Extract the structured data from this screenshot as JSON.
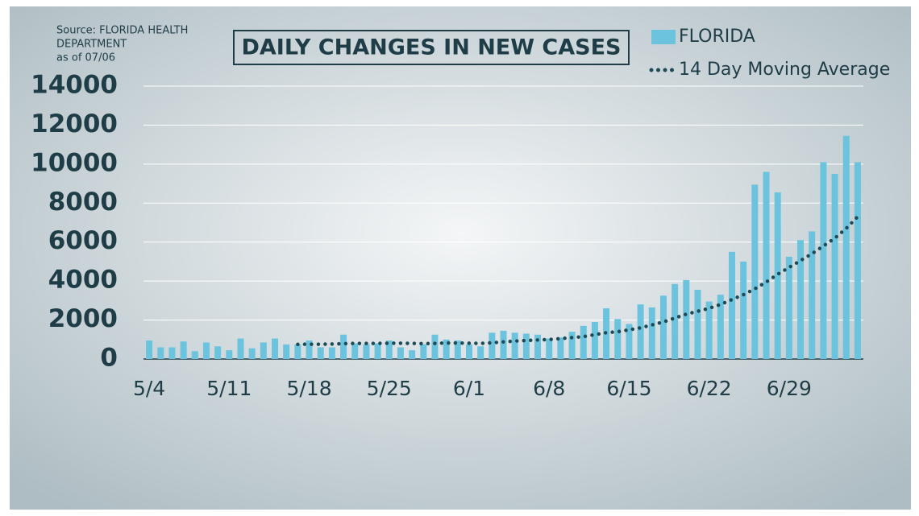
{
  "chart_data": {
    "type": "bar",
    "title": "DAILY CHANGES IN NEW CASES",
    "source": [
      "Source: FLORIDA HEALTH",
      "DEPARTMENT",
      "as of 07/06"
    ],
    "categories": [
      "5/4",
      null,
      null,
      null,
      null,
      null,
      null,
      "5/11",
      null,
      null,
      null,
      null,
      null,
      null,
      "5/18",
      null,
      null,
      null,
      null,
      null,
      null,
      "5/25",
      null,
      null,
      null,
      null,
      null,
      null,
      "6/1",
      null,
      null,
      null,
      null,
      null,
      null,
      "6/8",
      null,
      null,
      null,
      null,
      null,
      null,
      "6/15",
      null,
      null,
      null,
      null,
      null,
      null,
      "6/22",
      null,
      null,
      null,
      null,
      null,
      null,
      "6/29",
      null,
      null,
      null,
      null,
      null,
      null
    ],
    "series": [
      {
        "name": "FLORIDA",
        "color": "#6cc3de",
        "style": "bar",
        "values": [
          950,
          600,
          600,
          900,
          400,
          850,
          650,
          450,
          1050,
          550,
          850,
          1050,
          750,
          750,
          950,
          600,
          600,
          1250,
          800,
          750,
          800,
          950,
          600,
          450,
          750,
          1250,
          1000,
          950,
          750,
          650,
          1350,
          1450,
          1350,
          1300,
          1250,
          1050,
          1100,
          1400,
          1700,
          1900,
          2600,
          2050,
          1800,
          2800,
          2650,
          3250,
          3850,
          4050,
          3550,
          2950,
          3300,
          5500,
          5000,
          8950,
          9600,
          8550,
          5250,
          6100,
          6550,
          10100,
          9500,
          11450,
          10100
        ]
      },
      {
        "name": "14 Day Moving Average",
        "color": "#1d4a55",
        "style": "dotted-line",
        "values": [
          null,
          null,
          null,
          null,
          null,
          null,
          null,
          null,
          null,
          null,
          null,
          null,
          null,
          750,
          760,
          760,
          770,
          790,
          800,
          800,
          800,
          810,
          810,
          800,
          790,
          800,
          820,
          820,
          810,
          800,
          830,
          880,
          920,
          950,
          980,
          1000,
          1050,
          1100,
          1150,
          1250,
          1350,
          1400,
          1500,
          1600,
          1750,
          1900,
          2100,
          2300,
          2450,
          2600,
          2800,
          3050,
          3300,
          3600,
          3950,
          4350,
          4700,
          5050,
          5400,
          5800,
          6200,
          6700,
          7300
        ]
      }
    ],
    "ylim": [
      0,
      14000
    ],
    "yticks": [
      0,
      2000,
      4000,
      6000,
      8000,
      10000,
      12000,
      14000
    ],
    "grid": true
  }
}
